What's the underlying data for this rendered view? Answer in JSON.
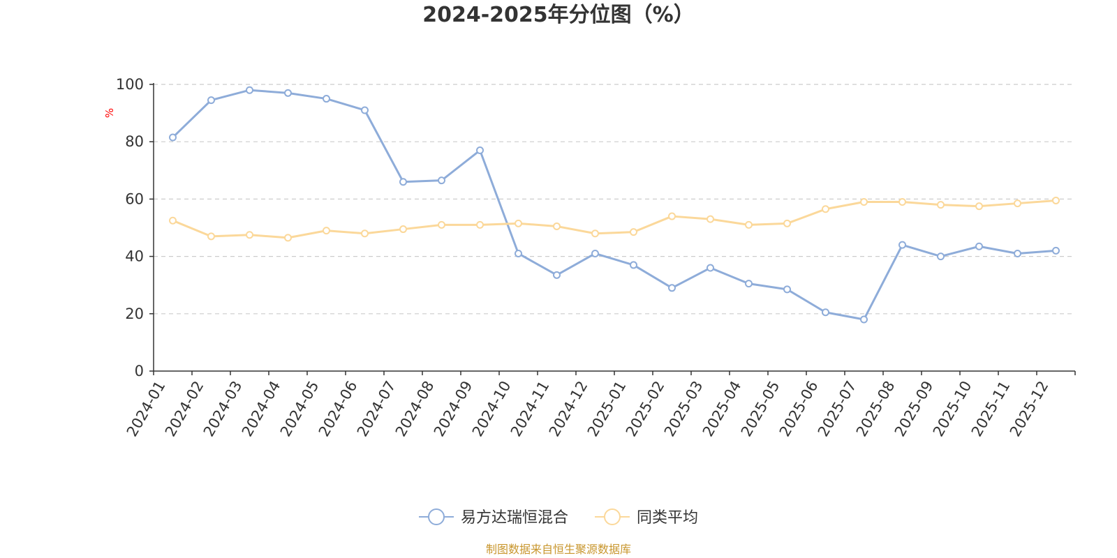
{
  "chart_data": {
    "type": "line",
    "title": "2024-2025年分位图（%）",
    "ylabel": "%",
    "ylim": [
      0,
      100
    ],
    "yticks": [
      0,
      20,
      40,
      60,
      80,
      100
    ],
    "grid": true,
    "legend_position": "bottom-center",
    "x": [
      "2024-01",
      "2024-02",
      "2024-03",
      "2024-04",
      "2024-05",
      "2024-06",
      "2024-07",
      "2024-08",
      "2024-09",
      "2024-10",
      "2024-11",
      "2024-12",
      "2025-01",
      "2025-02",
      "2025-03",
      "2025-04",
      "2025-05",
      "2025-06",
      "2025-07",
      "2025-08",
      "2025-09",
      "2025-10",
      "2025-11",
      "2025-12"
    ],
    "series": [
      {
        "name": "易方达瑞恒混合",
        "color": "#8eacd9",
        "values": [
          81.5,
          94.5,
          98,
          97,
          95,
          91,
          66,
          66.5,
          77,
          41,
          33.5,
          41,
          37,
          29,
          36,
          30.5,
          28.5,
          20.5,
          18,
          44,
          40,
          43.5,
          41,
          42
        ]
      },
      {
        "name": "同类平均",
        "color": "#fbd89a",
        "values": [
          52.5,
          47,
          47.5,
          46.5,
          49,
          48,
          49.5,
          51,
          51,
          51.5,
          50.5,
          48,
          48.5,
          54,
          53,
          51,
          51.5,
          56.5,
          59,
          59,
          58,
          57.5,
          58.5,
          59.5
        ]
      }
    ]
  },
  "source_note": "制图数据来自恒生聚源数据库",
  "colors": {
    "axis": "#333333",
    "grid": "#cccccc",
    "ylabel": "#ff0000",
    "source": "#c8962d"
  }
}
